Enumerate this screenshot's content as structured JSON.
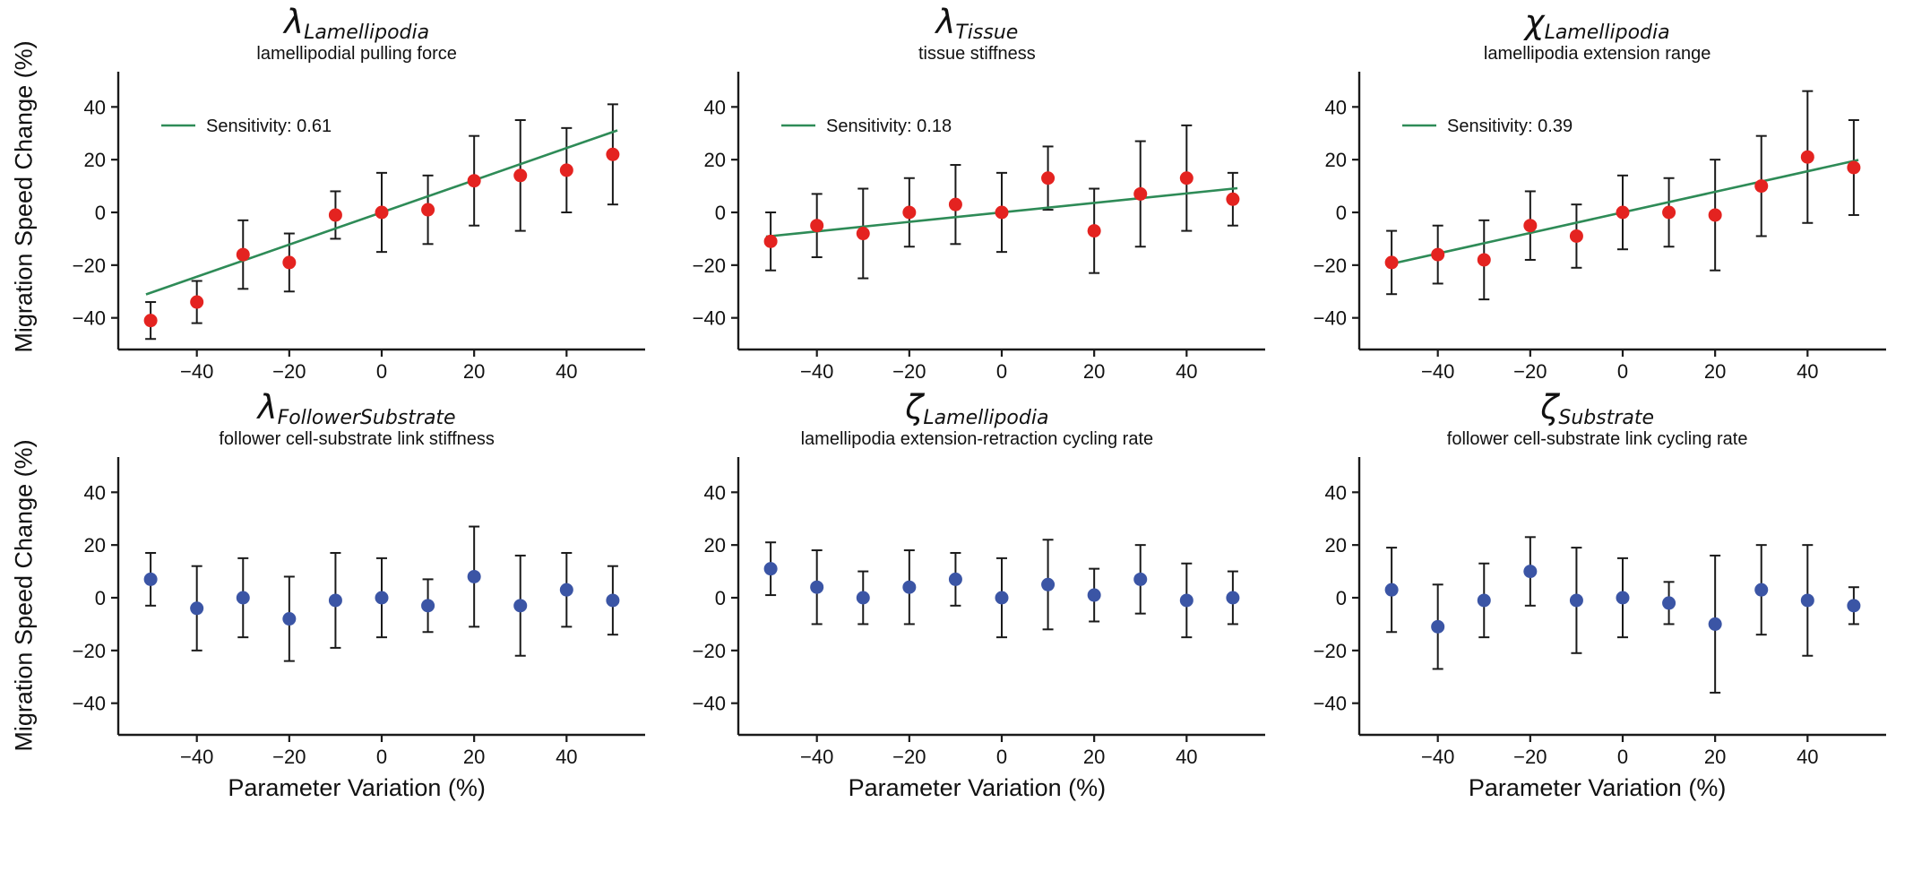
{
  "axes": {
    "xlabel": "Parameter Variation (%)",
    "ylabel": "Migration Speed Change (%)",
    "xticks": [
      -40,
      -20,
      0,
      20,
      40
    ],
    "yticks": [
      -40,
      -20,
      0,
      20,
      40
    ],
    "xlim": [
      -57,
      57
    ],
    "ylim": [
      -52,
      52
    ],
    "grid": false
  },
  "colors": {
    "red_point": "#e42320",
    "blue_point": "#3b55a5",
    "fit_line": "#2e8b57",
    "axis": "#1a1a1a",
    "error_bar": "#1a1a1a"
  },
  "chart_data": [
    {
      "type": "scatter",
      "symbol": "λ",
      "symbol_subscript": "Lamellipodia",
      "subtitle": "lamellipodial pulling force",
      "sensitivity": 0.61,
      "legend_label": "Sensitivity: 0.61",
      "point_color": "#e42320",
      "x": [
        -50,
        -40,
        -30,
        -20,
        -10,
        0,
        10,
        20,
        30,
        40,
        50
      ],
      "y": [
        -41,
        -34,
        -16,
        -19,
        -1,
        0,
        1,
        12,
        14,
        16,
        22
      ],
      "yerr": [
        7,
        8,
        13,
        11,
        9,
        15,
        13,
        17,
        21,
        16,
        19
      ]
    },
    {
      "type": "scatter",
      "symbol": "λ",
      "symbol_subscript": "Tissue",
      "subtitle": "tissue stiffness",
      "sensitivity": 0.18,
      "legend_label": "Sensitivity: 0.18",
      "point_color": "#e42320",
      "x": [
        -50,
        -40,
        -30,
        -20,
        -10,
        0,
        10,
        20,
        30,
        40,
        50
      ],
      "y": [
        -11,
        -5,
        -8,
        0,
        3,
        0,
        13,
        -7,
        7,
        13,
        5
      ],
      "yerr": [
        11,
        12,
        17,
        13,
        15,
        15,
        12,
        16,
        20,
        20,
        10
      ]
    },
    {
      "type": "scatter",
      "symbol": "χ",
      "symbol_subscript": "Lamellipodia",
      "subtitle": "lamellipodia extension range",
      "sensitivity": 0.39,
      "legend_label": "Sensitivity: 0.39",
      "point_color": "#e42320",
      "x": [
        -50,
        -40,
        -30,
        -20,
        -10,
        0,
        10,
        20,
        30,
        40,
        50
      ],
      "y": [
        -19,
        -16,
        -18,
        -5,
        -9,
        0,
        0,
        -1,
        10,
        21,
        17
      ],
      "yerr": [
        12,
        11,
        15,
        13,
        12,
        14,
        13,
        21,
        19,
        25,
        18
      ]
    },
    {
      "type": "scatter",
      "symbol": "λ",
      "symbol_subscript": "FollowerSubstrate",
      "subtitle": "follower cell-substrate link stiffness",
      "sensitivity": null,
      "legend_label": null,
      "point_color": "#3b55a5",
      "x": [
        -50,
        -40,
        -30,
        -20,
        -10,
        0,
        10,
        20,
        30,
        40,
        50
      ],
      "y": [
        7,
        -4,
        0,
        -8,
        -1,
        0,
        -3,
        8,
        -3,
        3,
        -1
      ],
      "yerr": [
        10,
        16,
        15,
        16,
        18,
        15,
        10,
        19,
        19,
        14,
        13
      ]
    },
    {
      "type": "scatter",
      "symbol": "ζ",
      "symbol_subscript": "Lamellipodia",
      "subtitle": "lamellipodia extension-retraction cycling rate",
      "sensitivity": null,
      "legend_label": null,
      "point_color": "#3b55a5",
      "x": [
        -50,
        -40,
        -30,
        -20,
        -10,
        0,
        10,
        20,
        30,
        40,
        50
      ],
      "y": [
        11,
        4,
        0,
        4,
        7,
        0,
        5,
        1,
        7,
        -1,
        0
      ],
      "yerr": [
        10,
        14,
        10,
        14,
        10,
        15,
        17,
        10,
        13,
        14,
        10
      ]
    },
    {
      "type": "scatter",
      "symbol": "ζ",
      "symbol_subscript": "Substrate",
      "subtitle": "follower cell-substrate link cycling rate",
      "sensitivity": null,
      "legend_label": null,
      "point_color": "#3b55a5",
      "x": [
        -50,
        -40,
        -30,
        -20,
        -10,
        0,
        10,
        20,
        30,
        40,
        50
      ],
      "y": [
        3,
        -11,
        -1,
        10,
        -1,
        0,
        -2,
        -10,
        3,
        -1,
        -3
      ],
      "yerr": [
        16,
        16,
        14,
        13,
        20,
        15,
        8,
        26,
        17,
        21,
        7
      ]
    }
  ]
}
